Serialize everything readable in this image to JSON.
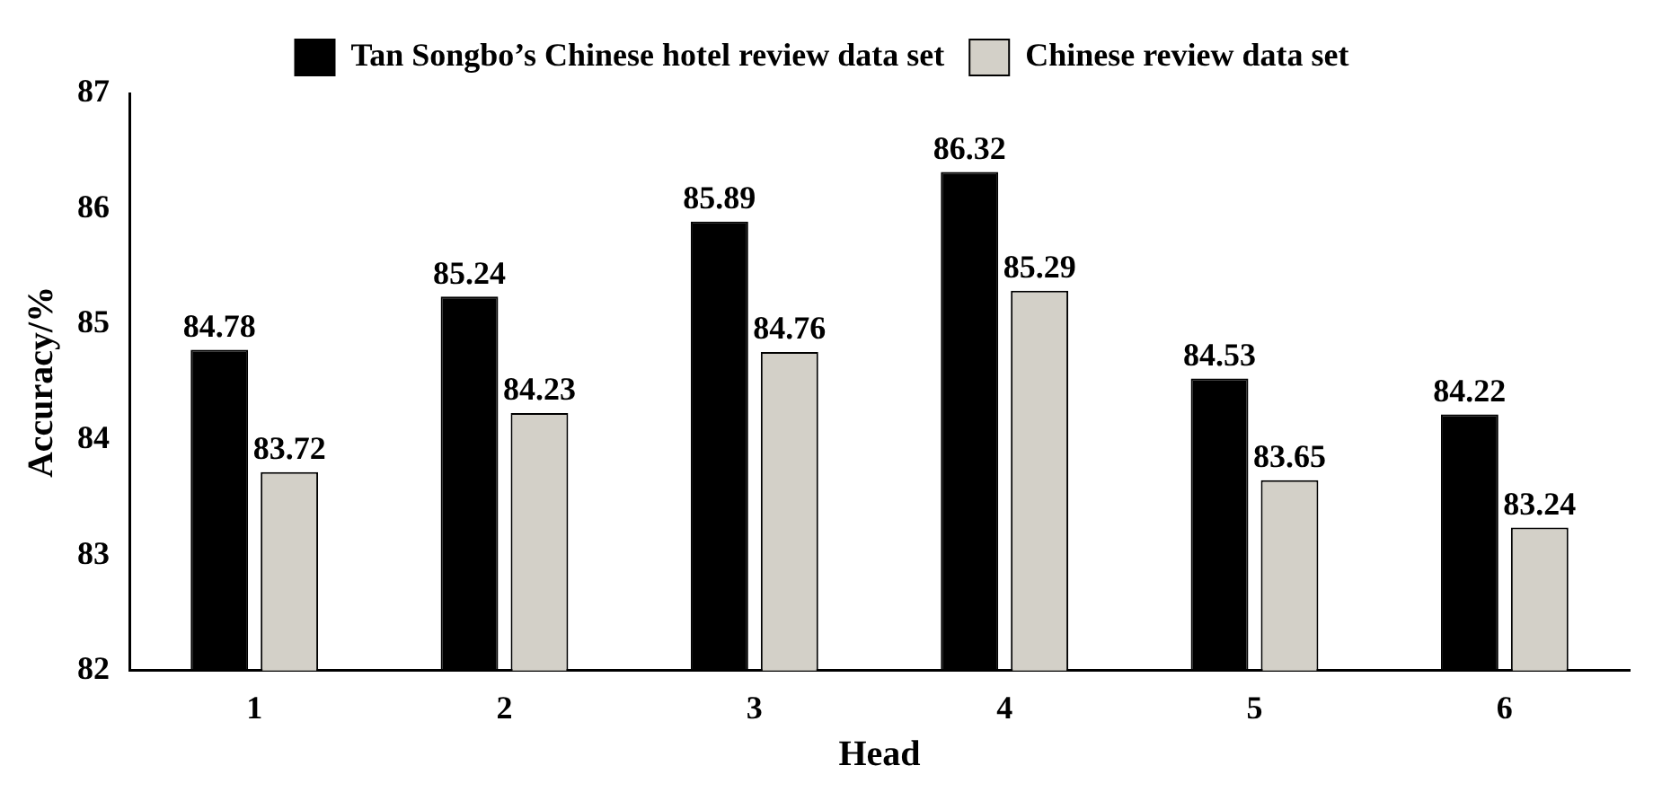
{
  "chart_data": {
    "type": "bar",
    "xlabel": "Head",
    "ylabel": "Accuracy/%",
    "categories": [
      "1",
      "2",
      "3",
      "4",
      "5",
      "6"
    ],
    "series": [
      {
        "name": "Tan Songbo’s Chinese hotel review data set",
        "color": "#000000",
        "values": [
          84.78,
          85.24,
          85.89,
          86.32,
          84.53,
          84.22
        ]
      },
      {
        "name": "Chinese review data set",
        "color": "#d3d0c8",
        "values": [
          83.72,
          84.23,
          84.76,
          85.29,
          83.65,
          83.24
        ]
      }
    ],
    "ylim": [
      82,
      87
    ],
    "yticks": [
      82,
      83,
      84,
      85,
      86,
      87
    ],
    "legend": "top",
    "data_labels": true
  }
}
